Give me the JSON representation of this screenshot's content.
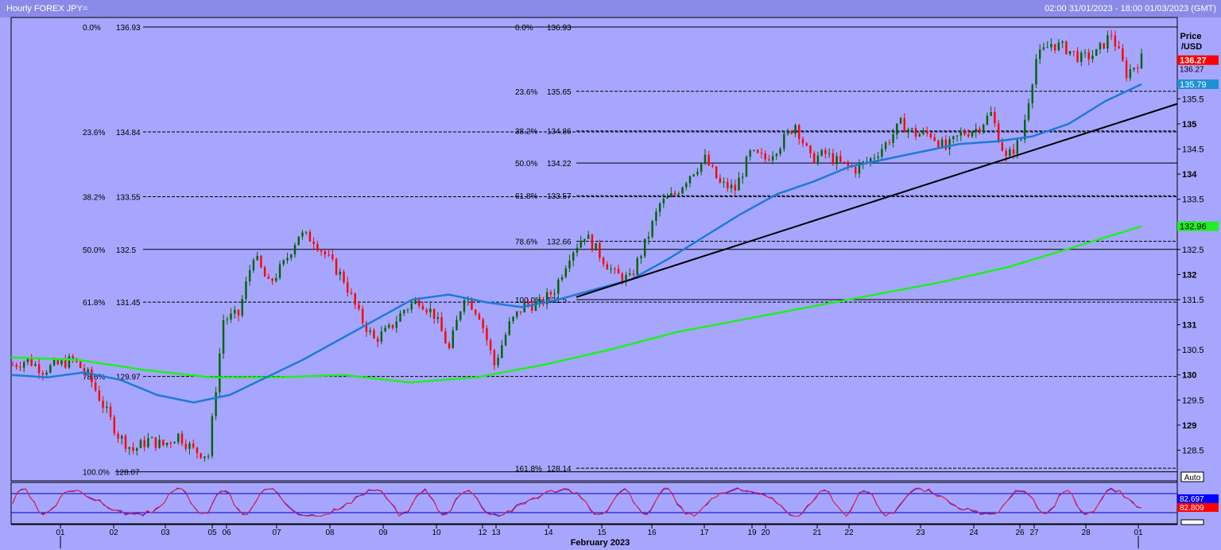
{
  "window": {
    "title": "Hourly FOREX JPY=",
    "range": "02:00 31/01/2023 - 18:00 01/03/2023 (GMT)"
  },
  "axis": {
    "price_label": "Price",
    "unit_label": "/USD",
    "auto_label": "Auto",
    "month_label": "February 2023"
  },
  "chart_data": {
    "type": "candlestick",
    "ylim": [
      128.0,
      137.0
    ],
    "y_ticks": [
      "128.5",
      "129",
      "129.5",
      "130",
      "130.5",
      "131",
      "131.5",
      "132",
      "132.5",
      "133",
      "133.5",
      "134",
      "134.5",
      "135",
      "135.5"
    ],
    "x_ticks": [
      "01",
      "02",
      "03",
      "05",
      "06",
      "07",
      "08",
      "09",
      "10",
      "12",
      "13",
      "14",
      "15",
      "16",
      "17",
      "19",
      "20",
      "21",
      "22",
      "23",
      "24",
      "26",
      "27",
      "28",
      "01"
    ],
    "price_path": [
      130.2,
      130.3,
      130.1,
      130.2,
      130.3,
      130.0,
      129.4,
      128.8,
      128.5,
      128.7,
      128.6,
      128.8,
      128.5,
      128.4,
      131.1,
      131.2,
      132.4,
      131.8,
      132.2,
      132.8,
      132.7,
      132.3,
      131.9,
      131.2,
      130.7,
      130.9,
      131.3,
      131.5,
      131.2,
      130.5,
      131.6,
      131.2,
      130.2,
      131.0,
      131.4,
      131.4,
      131.7,
      132.4,
      132.8,
      132.4,
      132.0,
      131.9,
      132.6,
      133.4,
      133.6,
      134.0,
      134.3,
      133.8,
      133.7,
      134.4,
      134.3,
      134.6,
      135.0,
      134.3,
      134.4,
      134.2,
      134.1,
      134.3,
      134.6,
      135.0,
      134.8,
      134.8,
      134.5,
      134.8,
      134.9,
      135.2,
      134.3,
      134.7,
      136.3,
      136.6,
      136.5,
      136.3,
      136.4,
      136.8,
      136.0,
      136.3
    ],
    "ma_blue": [
      130.0,
      129.95,
      130.05,
      129.9,
      129.6,
      129.45,
      129.6,
      129.95,
      130.3,
      130.7,
      131.1,
      131.5,
      131.6,
      131.45,
      131.35,
      131.5,
      131.7,
      131.9,
      132.3,
      132.75,
      133.2,
      133.6,
      133.85,
      134.15,
      134.3,
      134.45,
      134.6,
      134.65,
      134.75,
      135.0,
      135.45,
      135.79
    ],
    "ma_green": [
      130.35,
      130.3,
      130.1,
      129.95,
      129.95,
      130.0,
      129.85,
      129.95,
      130.2,
      130.5,
      130.85,
      131.1,
      131.35,
      131.6,
      131.85,
      132.15,
      132.55,
      132.96
    ],
    "trendline": {
      "from": [
        14.6,
        131.55
      ],
      "to": [
        29.7,
        135.4
      ]
    },
    "fib_left": [
      {
        "pct": "0.0%",
        "val": "136.93",
        "price": 136.93
      },
      {
        "pct": "23.6%",
        "val": "134.84",
        "price": 134.84
      },
      {
        "pct": "38.2%",
        "val": "133.55",
        "price": 133.55
      },
      {
        "pct": "50.0%",
        "val": "132.5",
        "price": 132.5
      },
      {
        "pct": "61.8%",
        "val": "131.45",
        "price": 131.45
      },
      {
        "pct": "78.6%",
        "val": "129.97",
        "price": 129.97
      },
      {
        "pct": "100.0%",
        "val": "128.07",
        "price": 128.07
      }
    ],
    "fib_right": [
      {
        "pct": "0.0%",
        "val": "136.93",
        "price": 136.93
      },
      {
        "pct": "23.6%",
        "val": "135.65",
        "price": 135.65
      },
      {
        "pct": "38.2%",
        "val": "134.86",
        "price": 134.86
      },
      {
        "pct": "50.0%",
        "val": "134.22",
        "price": 134.22
      },
      {
        "pct": "61.8%",
        "val": "133.57",
        "price": 133.57
      },
      {
        "pct": "78.6%",
        "val": "132.66",
        "price": 132.66
      },
      {
        "pct": "100.0%",
        "val": "131.5",
        "price": 131.5
      },
      {
        "pct": "161.8%",
        "val": "128.14",
        "price": 128.14
      }
    ],
    "price_tags": [
      {
        "label": "136.27",
        "price": 136.27,
        "color": "#ff0000"
      },
      {
        "label": "135.79",
        "price": 135.79,
        "color": "#1e90d8"
      },
      {
        "label": "132.96",
        "price": 132.96,
        "color": "#22ee22"
      }
    ],
    "price_tag_ghost": "136.27",
    "oscillator": {
      "tag_blue": "82.697",
      "tag_red": "82.809",
      "upper": 80,
      "lower": 20
    }
  },
  "colors": {
    "background": "#a6a6fe",
    "up": "#006400",
    "down": "#ff0000",
    "ma_blue": "#1e7ad8",
    "ma_green": "#22ee22"
  }
}
